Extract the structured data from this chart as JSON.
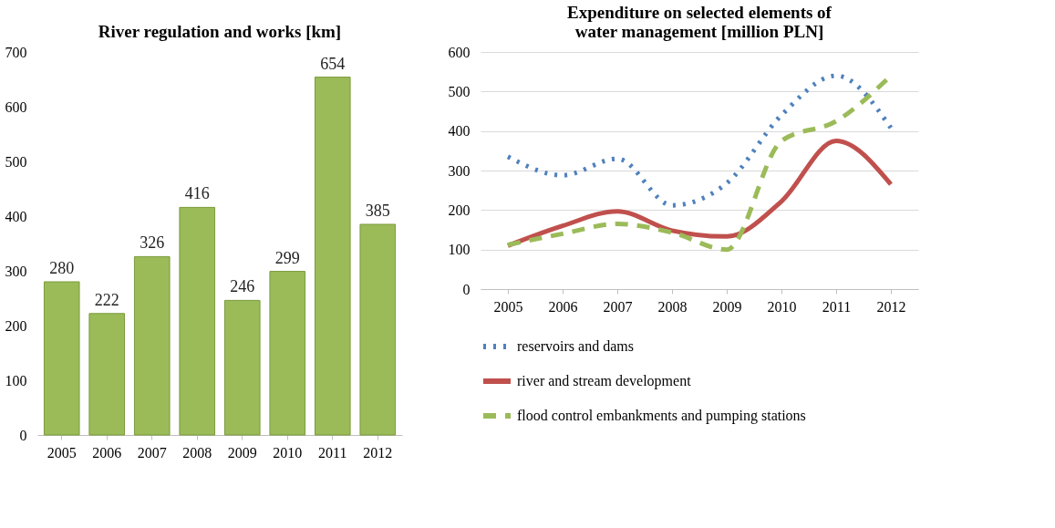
{
  "chart_data": [
    {
      "type": "bar",
      "title": "River regulation and works [km]",
      "categories": [
        "2005",
        "2006",
        "2007",
        "2008",
        "2009",
        "2010",
        "2011",
        "2012"
      ],
      "values": [
        280,
        222,
        326,
        416,
        246,
        299,
        654,
        385
      ],
      "color": "#9bbb59",
      "data_labels": true,
      "ylim": [
        0,
        700
      ],
      "yticks": [
        0,
        100,
        200,
        300,
        400,
        500,
        600,
        700
      ],
      "grid": false
    },
    {
      "type": "line",
      "title": "Expenditure on selected elements of water management [million PLN]",
      "categories": [
        "2005",
        "2006",
        "2007",
        "2008",
        "2009",
        "2010",
        "2011",
        "2012"
      ],
      "ylim": [
        0,
        600
      ],
      "yticks": [
        0,
        100,
        200,
        300,
        400,
        500,
        600
      ],
      "grid": "y",
      "legend": "bottom",
      "series": [
        {
          "name": "reservoirs and dams",
          "color": "#4f81bd",
          "line_style": "dotted",
          "values": [
            335,
            288,
            330,
            212,
            268,
            440,
            540,
            408
          ]
        },
        {
          "name": "river and stream development",
          "color": "#c0504d",
          "line_style": "solid",
          "values": [
            110,
            160,
            197,
            148,
            133,
            222,
            375,
            265
          ]
        },
        {
          "name": "flood control embankments and pumping stations",
          "color": "#9bbb59",
          "line_style": "dashed",
          "values": [
            112,
            140,
            165,
            143,
            100,
            375,
            425,
            540
          ]
        }
      ]
    }
  ]
}
